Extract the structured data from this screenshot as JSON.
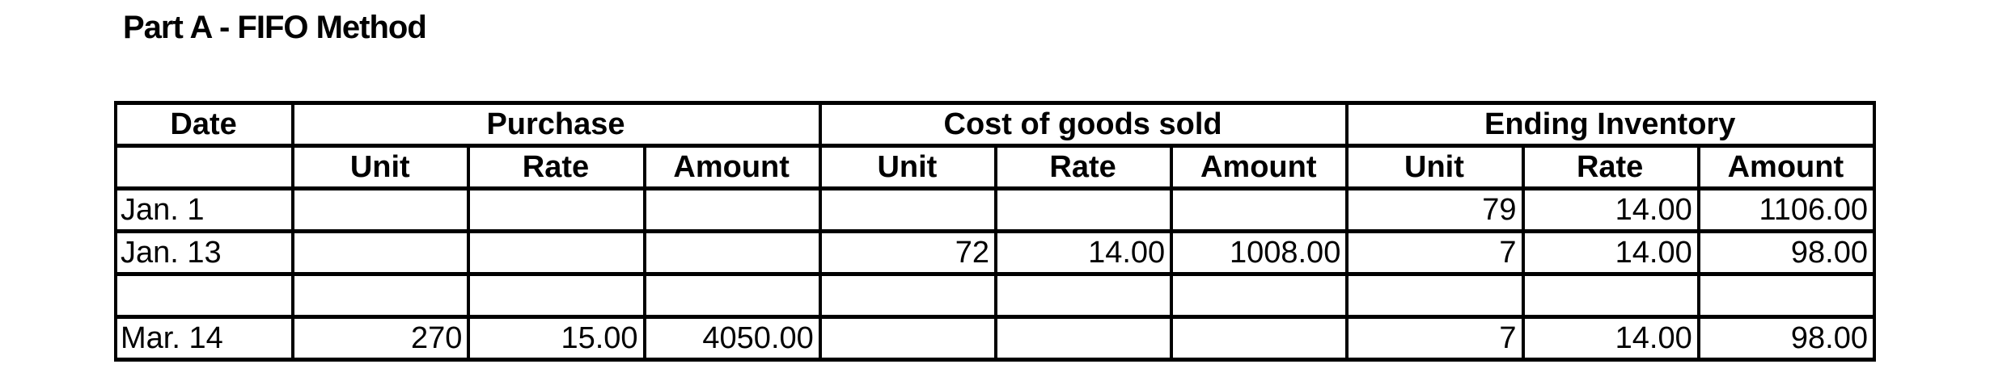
{
  "title": "Part A - FIFO Method",
  "table": {
    "group_headers": {
      "date": "Date",
      "purchase": "Purchase",
      "cogs": "Cost of goods sold",
      "ending": "Ending Inventory"
    },
    "sub_headers": [
      "Unit",
      "Rate",
      "Amount",
      "Unit",
      "Rate",
      "Amount",
      "Unit",
      "Rate",
      "Amount"
    ],
    "rows": [
      {
        "date": "Jan. 1",
        "cells": [
          "",
          "",
          "",
          "",
          "",
          "",
          "79",
          "14.00",
          "1106.00"
        ]
      },
      {
        "date": "Jan. 13",
        "cells": [
          "",
          "",
          "",
          "72",
          "14.00",
          "1008.00",
          "7",
          "14.00",
          "98.00"
        ]
      },
      {
        "date": "",
        "cells": [
          "",
          "",
          "",
          "",
          "",
          "",
          "",
          "",
          ""
        ]
      },
      {
        "date": "Mar. 14",
        "cells": [
          "270",
          "15.00",
          "4050.00",
          "",
          "",
          "",
          "7",
          "14.00",
          "98.00"
        ]
      }
    ]
  }
}
